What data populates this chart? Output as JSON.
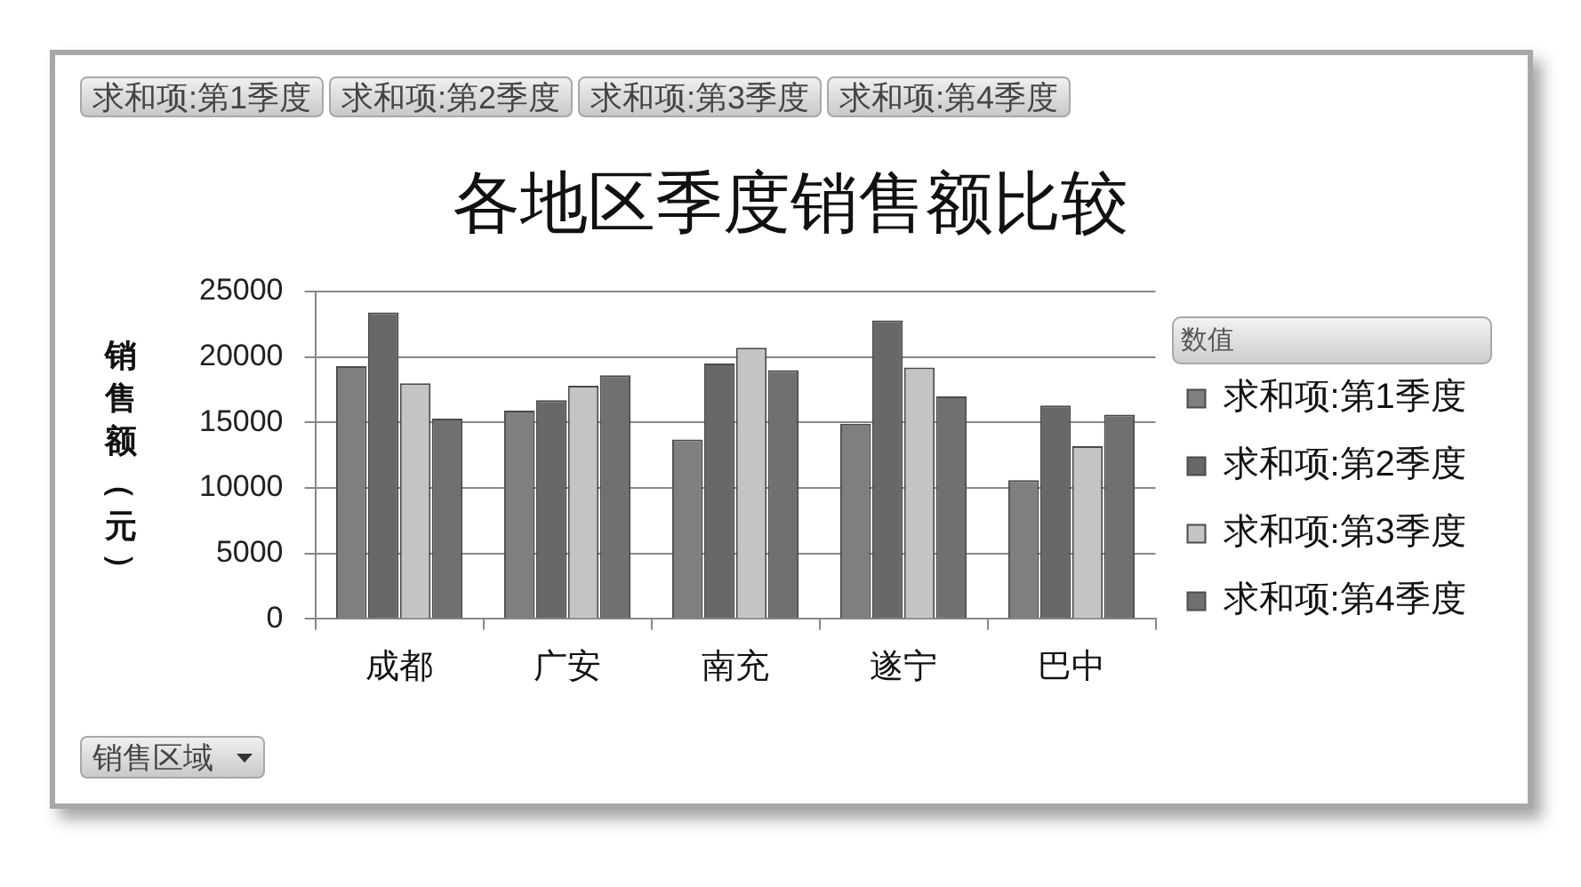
{
  "chart_data": {
    "type": "bar",
    "title": "各地区季度销售额比较",
    "ylabel": "销售额（元）",
    "legend_title": "数值",
    "categories": [
      "成都",
      "广安",
      "南充",
      "遂宁",
      "巴中"
    ],
    "series": [
      {
        "name": "求和项:第1季度",
        "color": "#7f7f7f",
        "values": [
          19300,
          15900,
          13700,
          14900,
          10600
        ]
      },
      {
        "name": "求和项:第2季度",
        "color": "#686868",
        "values": [
          23400,
          16700,
          19500,
          22800,
          16300
        ]
      },
      {
        "name": "求和项:第3季度",
        "color": "#c4c4c4",
        "values": [
          18000,
          17800,
          20700,
          19200,
          13200
        ]
      },
      {
        "name": "求和项:第4季度",
        "color": "#707070",
        "values": [
          15300,
          18600,
          19000,
          17000,
          15600
        ]
      }
    ],
    "ylim": [
      0,
      25000
    ],
    "yticks": [
      0,
      5000,
      10000,
      15000,
      20000,
      25000
    ],
    "grid": "y",
    "legend": "right",
    "annotations": [
      "求和项:第1季度",
      "求和项:第2季度",
      "求和项:第3季度",
      "求和项:第4季度",
      "销售区域"
    ]
  }
}
